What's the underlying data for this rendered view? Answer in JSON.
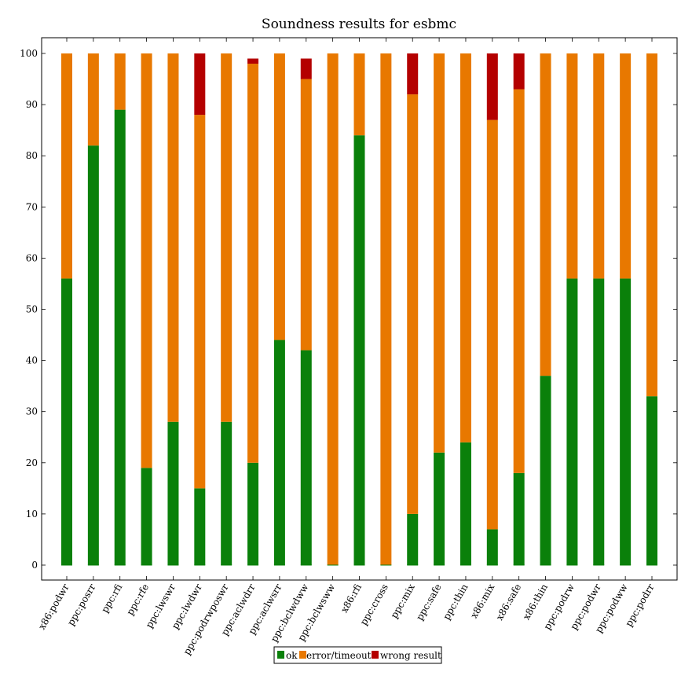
{
  "chart_data": {
    "type": "bar",
    "stacked": true,
    "title": "Soundness results for esbmc",
    "xlabel": "",
    "ylabel": "",
    "ylim": [
      0,
      100
    ],
    "yticks": [
      0,
      10,
      20,
      30,
      40,
      50,
      60,
      70,
      80,
      90,
      100
    ],
    "grid": false,
    "legend_position": "bottom-center",
    "categories": [
      "x86:podwr",
      "ppc:posrr",
      "ppc:rfi",
      "ppc:rfe",
      "ppc:lwswr",
      "ppc:lwdwr",
      "ppc:podrwposwr",
      "ppc:aclwdrr",
      "ppc:aclwsrr",
      "ppc:bclwdww",
      "ppc:bclwsww",
      "x86:rfi",
      "ppc:cross",
      "ppc:mix",
      "ppc:safe",
      "ppc:thin",
      "x86:mix",
      "x86:safe",
      "x86:thin",
      "ppc:podrw",
      "ppc:podwr",
      "ppc:podww",
      "ppc:podrr"
    ],
    "series": [
      {
        "name": "ok",
        "color": "#0a800a",
        "values": [
          56,
          82,
          89,
          19,
          28,
          15,
          28,
          20,
          44,
          42,
          0,
          84,
          0,
          10,
          22,
          24,
          7,
          18,
          37,
          56,
          56,
          56,
          33
        ]
      },
      {
        "name": "error/timeout",
        "color": "#e87800",
        "values": [
          44,
          18,
          11,
          81,
          72,
          73,
          72,
          78,
          56,
          53,
          100,
          16,
          100,
          82,
          78,
          76,
          80,
          75,
          63,
          44,
          44,
          44,
          67
        ]
      },
      {
        "name": "wrong result",
        "color": "#b40000",
        "values": [
          0,
          0,
          0,
          0,
          0,
          12,
          0,
          1,
          0,
          4,
          0,
          0,
          0,
          8,
          0,
          0,
          13,
          7,
          0,
          0,
          0,
          0,
          0
        ]
      }
    ]
  }
}
